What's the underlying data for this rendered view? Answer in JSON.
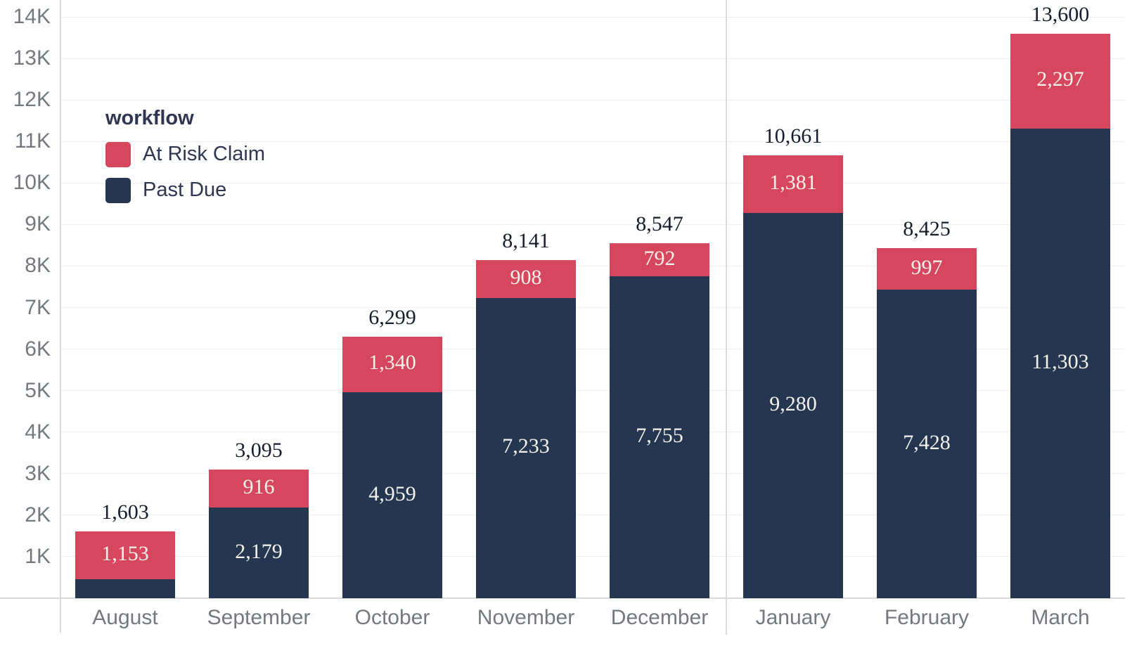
{
  "chart_data": {
    "type": "bar",
    "stacked": true,
    "categories": [
      "August",
      "September",
      "October",
      "November",
      "December",
      "January",
      "February",
      "March"
    ],
    "series": [
      {
        "name": "Past Due",
        "color": "#253650",
        "values": [
          450,
          2179,
          4959,
          7233,
          7755,
          9280,
          7428,
          11303
        ],
        "labels": [
          null,
          "2,179",
          "4,959",
          "7,233",
          "7,755",
          "9,280",
          "7,428",
          "11,303"
        ]
      },
      {
        "name": "At Risk Claim",
        "color": "#d6475e",
        "values": [
          1153,
          916,
          1340,
          908,
          792,
          1381,
          997,
          2297
        ],
        "labels": [
          "1,153",
          "916",
          "1,340",
          "908",
          "792",
          "1,381",
          "997",
          "2,297"
        ]
      }
    ],
    "totals": [
      "1,603",
      "3,095",
      "6,299",
      "8,141",
      "8,547",
      "10,661",
      "8,425",
      "13,600"
    ],
    "y_axis": {
      "ticks": [
        "1K",
        "2K",
        "3K",
        "4K",
        "5K",
        "6K",
        "7K",
        "8K",
        "9K",
        "10K",
        "11K",
        "12K",
        "13K",
        "14K"
      ],
      "max": 14000,
      "grid": true
    },
    "legend": {
      "title": "workflow",
      "items": [
        "At Risk Claim",
        "Past Due"
      ],
      "position": "upper-left"
    },
    "panel_divider_after_index": 4,
    "label_text_color_inside": "#f5f2ec",
    "label_text_color_total": "#161d2e",
    "axis_text_color": "#75787f"
  }
}
